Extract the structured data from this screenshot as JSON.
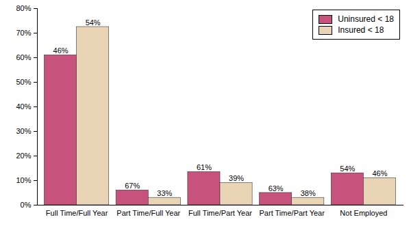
{
  "chart_data": {
    "type": "bar",
    "categories": [
      "Full Time/Full Year",
      "Part Time/Full Year",
      "Full Time/Part Year",
      "Part Time/Part Year",
      "Not Employed"
    ],
    "series": [
      {
        "name": "Uninsured < 18",
        "color": "#c8527e",
        "values": [
          61,
          6,
          13.5,
          5,
          13
        ],
        "bar_labels": [
          "46%",
          "67%",
          "61%",
          "63%",
          "54%"
        ]
      },
      {
        "name": "Insured < 18",
        "color": "#e9d4b6",
        "values": [
          72.5,
          3,
          9,
          3,
          11
        ],
        "bar_labels": [
          "54%",
          "33%",
          "39%",
          "38%",
          "46%"
        ]
      }
    ],
    "ylim": [
      0,
      80
    ],
    "yticks": [
      {
        "value": 0,
        "label": "0%"
      },
      {
        "value": 10,
        "label": "10%"
      },
      {
        "value": 20,
        "label": "20%"
      },
      {
        "value": 30,
        "label": "30%"
      },
      {
        "value": 40,
        "label": "40%"
      },
      {
        "value": 50,
        "label": "50%"
      },
      {
        "value": 60,
        "label": "60%"
      },
      {
        "value": 70,
        "label": "70%"
      },
      {
        "value": 80,
        "label": "80%"
      }
    ],
    "grid": false,
    "legend": "top-right"
  }
}
